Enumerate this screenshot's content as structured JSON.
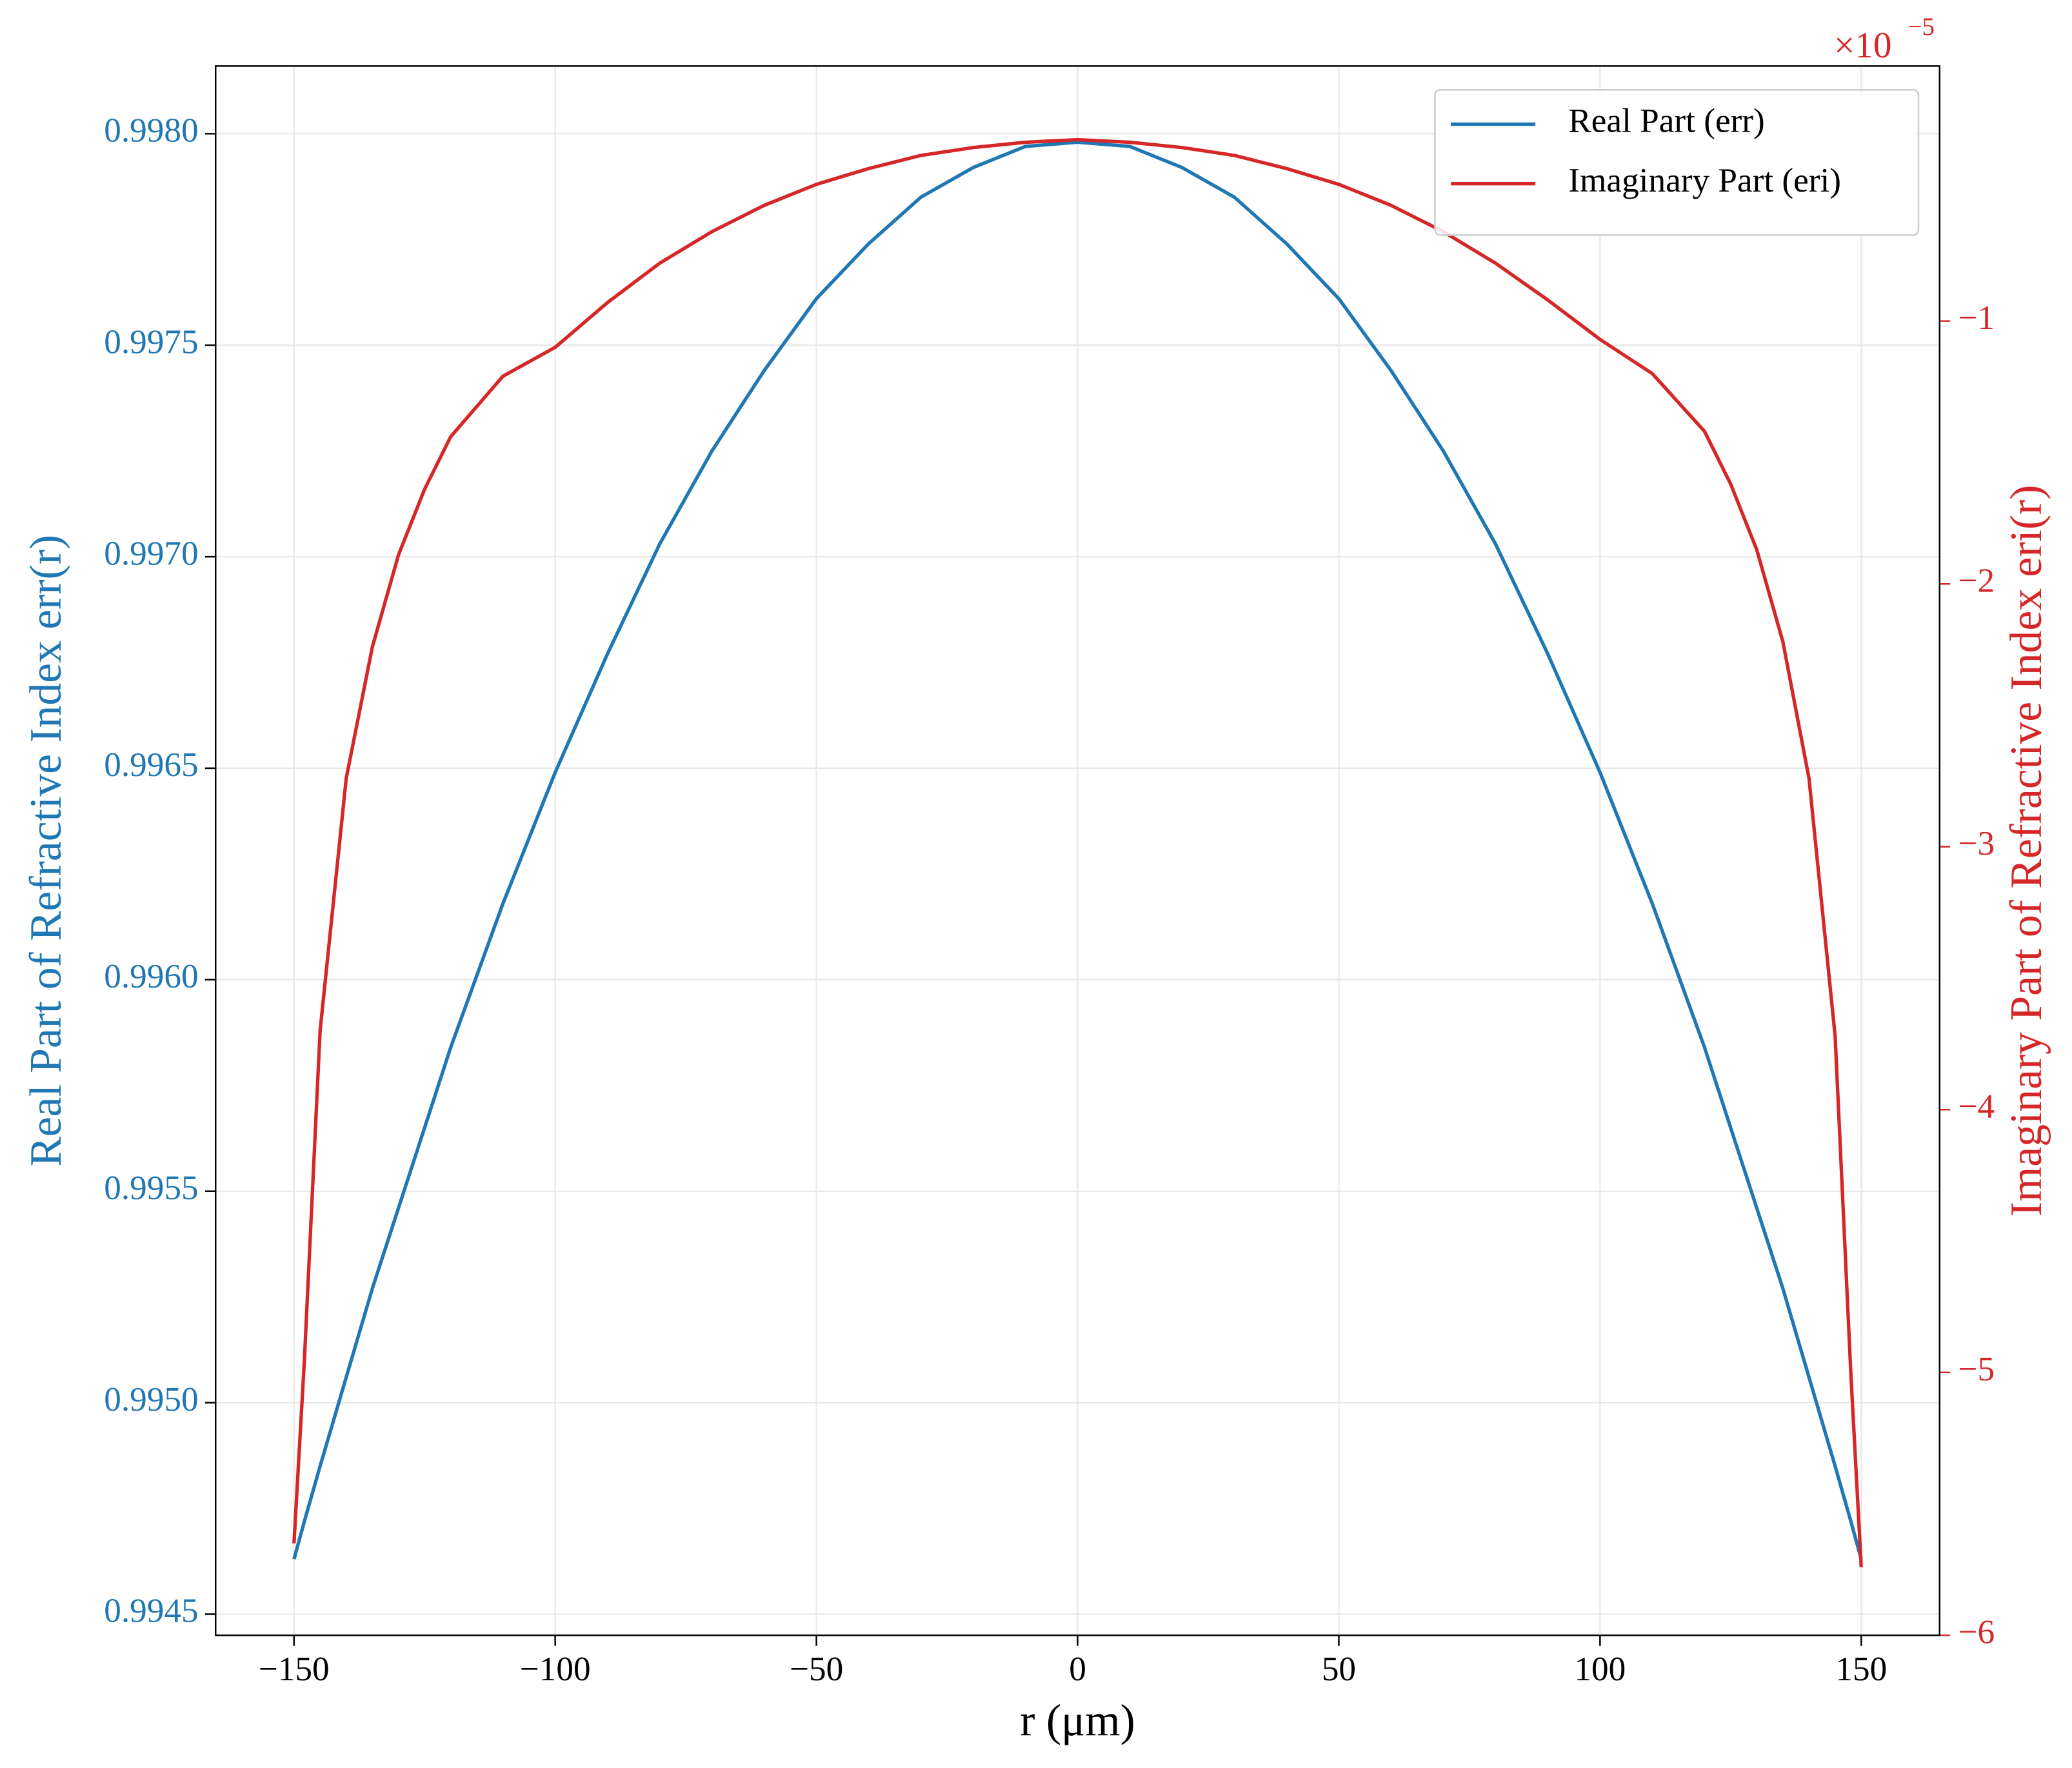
{
  "chart_data": {
    "type": "line",
    "xlabel": "r (μm)",
    "ylabel": "Real Part of Refractive Index err(r)",
    "y2label": "Imaginary Part of Refractive Index eri(r)",
    "y2_offset_text": "×10",
    "y2_offset_exponent": "−5",
    "x": [
      -150,
      -148,
      -145,
      -140,
      -135,
      -130,
      -125,
      -120,
      -110,
      -100,
      -90,
      -80,
      -70,
      -60,
      -50,
      -40,
      -30,
      -20,
      -10,
      0,
      10,
      20,
      30,
      40,
      50,
      60,
      70,
      80,
      90,
      100,
      110,
      120,
      125,
      130,
      135,
      140,
      145,
      148,
      150
    ],
    "series": [
      {
        "name": "Real Part (err)",
        "color": "#1f77b4",
        "axis": "y",
        "values": [
          0.99463,
          0.99472,
          0.99485,
          0.99506,
          0.99527,
          0.99546,
          0.99565,
          0.99584,
          0.99618,
          0.99649,
          0.99677,
          0.99703,
          0.99725,
          0.99744,
          0.99761,
          0.99774,
          0.99785,
          0.99792,
          0.99797,
          0.99798,
          0.99797,
          0.99792,
          0.99785,
          0.99774,
          0.99761,
          0.99744,
          0.99725,
          0.99703,
          0.99677,
          0.99649,
          0.99618,
          0.99584,
          0.99565,
          0.99546,
          0.99527,
          0.99506,
          0.99485,
          0.99472,
          0.99463
        ]
      },
      {
        "name": "Imaginary Part (eri)",
        "color": "#d62728",
        "axis": "y2",
        "values": [
          -5.65,
          -4.95,
          -3.7,
          -2.74,
          -2.24,
          -1.89,
          -1.64,
          -1.44,
          -1.21,
          -1.1,
          -0.93,
          -0.78,
          -0.66,
          -0.56,
          -0.48,
          -0.42,
          -0.37,
          -0.34,
          -0.32,
          -0.31,
          -0.32,
          -0.34,
          -0.37,
          -0.42,
          -0.48,
          -0.56,
          -0.66,
          -0.78,
          -0.92,
          -1.07,
          -1.2,
          -1.42,
          -1.62,
          -1.87,
          -2.22,
          -2.74,
          -3.72,
          -5.0,
          -5.74
        ]
      }
    ],
    "xlim": [
      -165,
      165
    ],
    "xticks": [
      {
        "value": -150,
        "label": "−150"
      },
      {
        "value": -100,
        "label": "−100"
      },
      {
        "value": -50,
        "label": "−50"
      },
      0,
      50,
      100,
      150
    ],
    "ylim": [
      0.99445,
      0.99816
    ],
    "yticks": [
      0.9945,
      {
        "value": 0.995,
        "label": "0.9950"
      },
      0.9955,
      {
        "value": 0.996,
        "label": "0.9960"
      },
      0.9965,
      {
        "value": 0.997,
        "label": "0.9970"
      },
      0.9975,
      {
        "value": 0.998,
        "label": "0.9980"
      }
    ],
    "y2lim": [
      -6,
      -0.03
    ],
    "y2ticks": [
      {
        "value": -6,
        "label": "−6"
      },
      {
        "value": -5,
        "label": "−5"
      },
      {
        "value": -4,
        "label": "−4"
      },
      {
        "value": -3,
        "label": "−3"
      },
      {
        "value": -2,
        "label": "−2"
      },
      {
        "value": -1,
        "label": "−1"
      }
    ],
    "ycolor": "#1f77b4",
    "y2color": "#d62728",
    "grid": true,
    "legend": "upper right"
  }
}
